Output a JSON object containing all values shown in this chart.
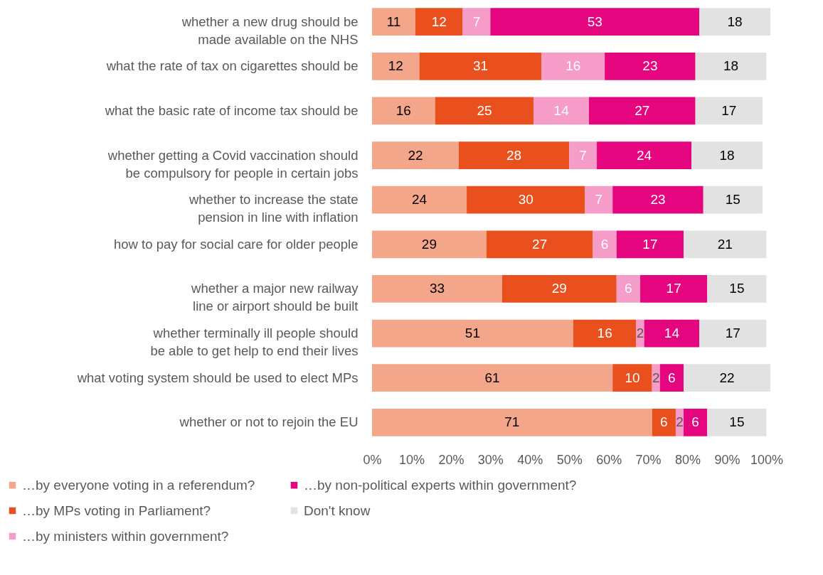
{
  "chart_data": {
    "type": "bar",
    "orientation": "horizontal",
    "stacked": true,
    "data_labels": true,
    "grid": false,
    "legend": "bottom",
    "categories": [
      "whether a new drug should be\nmade available on the NHS",
      "what the rate of tax on cigarettes should be",
      "what the basic rate of income tax should be",
      "whether getting a Covid vaccination should\nbe compulsory for people in certain jobs",
      "whether to increase the state\npension in line with inflation",
      "how to pay for social care for older people",
      "whether a major new railway\nline or airport should be built",
      "whether terminally ill people should\nbe able to get help to end their lives",
      "what voting system should be used to elect MPs",
      "whether or not to rejoin the EU"
    ],
    "xlim": [
      0,
      101
    ],
    "xticks": [
      {
        "value": 0,
        "label": "0%"
      },
      {
        "value": 10,
        "label": "10%"
      },
      {
        "value": 20,
        "label": "20%"
      },
      {
        "value": 30,
        "label": "30%"
      },
      {
        "value": 40,
        "label": "40%"
      },
      {
        "value": 50,
        "label": "50%"
      },
      {
        "value": 60,
        "label": "60%"
      },
      {
        "value": 70,
        "label": "70%"
      },
      {
        "value": 80,
        "label": "80%"
      },
      {
        "value": 90,
        "label": "90%"
      },
      {
        "value": 100,
        "label": "100%"
      }
    ],
    "series": [
      {
        "name": "…by everyone voting in a referendum?",
        "color": "#f4a68b",
        "values": [
          11,
          12,
          16,
          22,
          24,
          29,
          33,
          51,
          61,
          71
        ]
      },
      {
        "name": "…by MPs voting in Parliament?",
        "color": "#e9501e",
        "values": [
          12,
          31,
          25,
          28,
          30,
          27,
          29,
          16,
          10,
          6
        ]
      },
      {
        "name": "…by ministers within government?",
        "color": "#f59cc9",
        "values": [
          7,
          16,
          14,
          7,
          7,
          6,
          6,
          2,
          2,
          2
        ]
      },
      {
        "name": "…by non-political experts within government?",
        "color": "#e5067f",
        "values": [
          53,
          23,
          27,
          24,
          23,
          17,
          17,
          14,
          6,
          6
        ]
      },
      {
        "name": "Don't know",
        "color": "#e2e2e2",
        "values": [
          18,
          18,
          17,
          18,
          15,
          21,
          15,
          17,
          22,
          15
        ]
      }
    ]
  }
}
